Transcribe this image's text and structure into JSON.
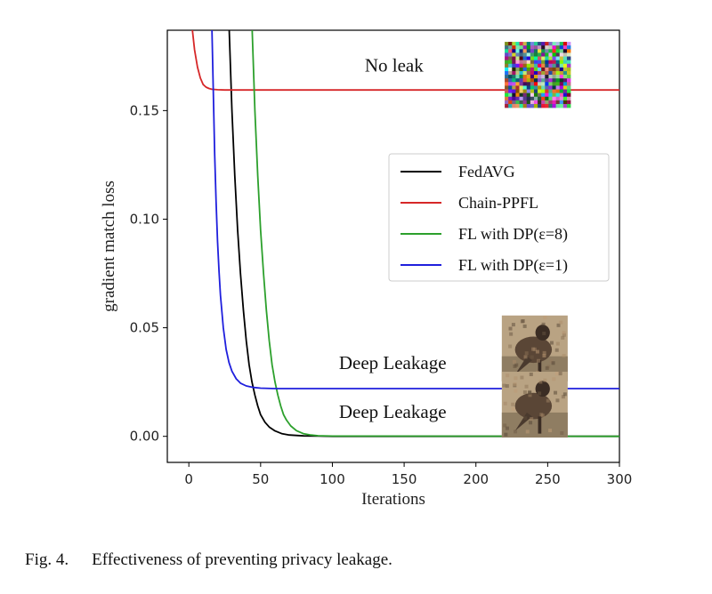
{
  "chart_data": {
    "type": "line",
    "xlabel": "Iterations",
    "ylabel": "gradient match loss",
    "xlim": [
      -15,
      300
    ],
    "ylim": [
      -0.012,
      0.187
    ],
    "xticks": [
      0,
      50,
      100,
      150,
      200,
      250,
      300
    ],
    "yticks": [
      0.0,
      0.05,
      0.1,
      0.15
    ],
    "ytick_labels": [
      "0.00",
      "0.05",
      "0.10",
      "0.15"
    ],
    "grid": false,
    "legend_position": "center-right",
    "series": [
      {
        "name": "FedAVG",
        "color": "#000000",
        "x": [
          28,
          30,
          32,
          34,
          36,
          38,
          40,
          42,
          44,
          46,
          48,
          50,
          53,
          56,
          60,
          65,
          70,
          80,
          90,
          100,
          300
        ],
        "y": [
          0.19,
          0.15,
          0.12,
          0.095,
          0.075,
          0.058,
          0.044,
          0.033,
          0.025,
          0.019,
          0.014,
          0.01,
          0.0065,
          0.0043,
          0.0025,
          0.0012,
          0.0006,
          0.0002,
          0.0001,
          0.0,
          0.0
        ]
      },
      {
        "name": "Chain-PPFL",
        "color": "#d62728",
        "x": [
          2,
          4,
          6,
          8,
          10,
          12,
          14,
          16,
          20,
          25,
          30,
          300
        ],
        "y": [
          0.19,
          0.178,
          0.17,
          0.165,
          0.162,
          0.1608,
          0.1602,
          0.1598,
          0.1596,
          0.1595,
          0.1595,
          0.1595
        ]
      },
      {
        "name": "FL with DP(ε=8)",
        "color": "#2ca02c",
        "x": [
          44,
          46,
          48,
          50,
          52,
          54,
          56,
          58,
          60,
          62,
          64,
          66,
          68,
          71,
          75,
          80,
          85,
          90,
          100,
          300
        ],
        "y": [
          0.19,
          0.15,
          0.12,
          0.095,
          0.075,
          0.058,
          0.044,
          0.033,
          0.025,
          0.019,
          0.014,
          0.01,
          0.0075,
          0.0048,
          0.0026,
          0.0012,
          0.0006,
          0.0003,
          0.0001,
          0.0
        ]
      },
      {
        "name": "FL with DP(ε=1)",
        "color": "#1f1fdd",
        "x": [
          16,
          17,
          18,
          19,
          20,
          21,
          22,
          24,
          26,
          28,
          30,
          33,
          36,
          40,
          45,
          50,
          60,
          80,
          300
        ],
        "y": [
          0.19,
          0.16,
          0.13,
          0.108,
          0.09,
          0.076,
          0.065,
          0.05,
          0.04,
          0.034,
          0.03,
          0.0265,
          0.0245,
          0.0232,
          0.0225,
          0.0222,
          0.022,
          0.022,
          0.022
        ]
      }
    ],
    "annotations": [
      {
        "text": "No leak",
        "x": 143,
        "y": 0.168
      },
      {
        "text": "Deep Leakage",
        "x": 142,
        "y": 0.031
      },
      {
        "text": "Deep Leakage",
        "x": 142,
        "y": 0.0085
      }
    ],
    "thumbnails": [
      {
        "name": "noise-image",
        "kind": "noise",
        "x": 243,
        "y": 0.1665
      },
      {
        "name": "reconstructed-image",
        "kind": "bird",
        "x": 241,
        "y": 0.0405
      },
      {
        "name": "reconstructed-image",
        "kind": "bird",
        "x": 241,
        "y": 0.0146
      }
    ]
  },
  "caption": {
    "number": "Fig. 4.",
    "text": "Effectiveness of preventing privacy leakage."
  }
}
